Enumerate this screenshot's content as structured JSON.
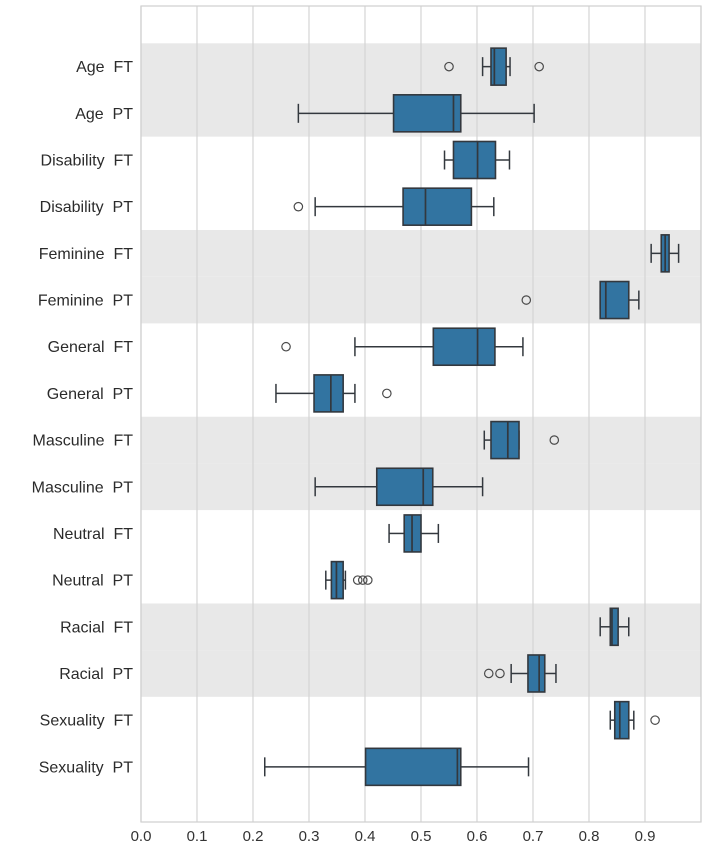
{
  "figure": {
    "background": "#ffffff"
  },
  "chart_data": {
    "type": "boxplot",
    "orientation": "horizontal",
    "title": "",
    "xlabel": "",
    "ylabel": "",
    "xlim": [
      0.0,
      1.0
    ],
    "x_ticks": [
      "0.0",
      "0.1",
      "0.2",
      "0.3",
      "0.4",
      "0.5",
      "0.6",
      "0.7",
      "0.8",
      "0.9"
    ],
    "grid": "vertical-gridlines-on",
    "legend": "none",
    "stripe_pattern": "label-pairs-alternate-gray-white",
    "colors": {
      "box_fill": "#3274a1",
      "line": "#33383e",
      "band_gray": "#e8e8e8",
      "gridline": "#d4d4d4",
      "spine": "#cfcfcf",
      "tick_text": "#333333",
      "label_text": "#2b2b2b",
      "outlier_stroke": "#4a4a4a"
    },
    "rows": [
      {
        "label": "Age  FT",
        "whisker_low": 0.61,
        "q1": 0.625,
        "median": 0.631,
        "q3": 0.652,
        "whisker_high": 0.659,
        "outliers": [
          0.55,
          0.711
        ]
      },
      {
        "label": "Age  PT",
        "whisker_low": 0.281,
        "q1": 0.451,
        "median": 0.558,
        "q3": 0.571,
        "whisker_high": 0.702,
        "outliers": []
      },
      {
        "label": "Disability  FT",
        "whisker_low": 0.542,
        "q1": 0.558,
        "median": 0.601,
        "q3": 0.633,
        "whisker_high": 0.658,
        "outliers": []
      },
      {
        "label": "Disability  PT",
        "whisker_low": 0.311,
        "q1": 0.468,
        "median": 0.508,
        "q3": 0.59,
        "whisker_high": 0.63,
        "outliers": [
          0.281
        ]
      },
      {
        "label": "Feminine  FT",
        "whisker_low": 0.911,
        "q1": 0.929,
        "median": 0.936,
        "q3": 0.943,
        "whisker_high": 0.96,
        "outliers": []
      },
      {
        "label": "Feminine  PT",
        "whisker_low": 0.82,
        "q1": 0.82,
        "median": 0.83,
        "q3": 0.871,
        "whisker_high": 0.889,
        "outliers": [
          0.688
        ]
      },
      {
        "label": "General  FT",
        "whisker_low": 0.382,
        "q1": 0.522,
        "median": 0.601,
        "q3": 0.632,
        "whisker_high": 0.682,
        "outliers": [
          0.259
        ]
      },
      {
        "label": "General  PT",
        "whisker_low": 0.241,
        "q1": 0.309,
        "median": 0.339,
        "q3": 0.361,
        "whisker_high": 0.382,
        "outliers": [
          0.439
        ]
      },
      {
        "label": "Masculine  FT",
        "whisker_low": 0.613,
        "q1": 0.625,
        "median": 0.655,
        "q3": 0.675,
        "whisker_high": 0.675,
        "outliers": [
          0.738
        ]
      },
      {
        "label": "Masculine  PT",
        "whisker_low": 0.311,
        "q1": 0.421,
        "median": 0.504,
        "q3": 0.521,
        "whisker_high": 0.61,
        "outliers": []
      },
      {
        "label": "Neutral  FT",
        "whisker_low": 0.443,
        "q1": 0.47,
        "median": 0.484,
        "q3": 0.5,
        "whisker_high": 0.531,
        "outliers": []
      },
      {
        "label": "Neutral  PT",
        "whisker_low": 0.33,
        "q1": 0.34,
        "median": 0.349,
        "q3": 0.361,
        "whisker_high": 0.365,
        "outliers": [
          0.387,
          0.396,
          0.405
        ]
      },
      {
        "label": "Racial  FT",
        "whisker_low": 0.82,
        "q1": 0.838,
        "median": 0.841,
        "q3": 0.852,
        "whisker_high": 0.871,
        "outliers": []
      },
      {
        "label": "Racial  PT",
        "whisker_low": 0.661,
        "q1": 0.691,
        "median": 0.711,
        "q3": 0.721,
        "whisker_high": 0.741,
        "outliers": [
          0.621,
          0.641
        ]
      },
      {
        "label": "Sexuality  FT",
        "whisker_low": 0.838,
        "q1": 0.846,
        "median": 0.855,
        "q3": 0.871,
        "whisker_high": 0.88,
        "outliers": [
          0.918
        ]
      },
      {
        "label": "Sexuality  PT",
        "whisker_low": 0.221,
        "q1": 0.401,
        "median": 0.565,
        "q3": 0.571,
        "whisker_high": 0.692,
        "outliers": []
      }
    ]
  }
}
